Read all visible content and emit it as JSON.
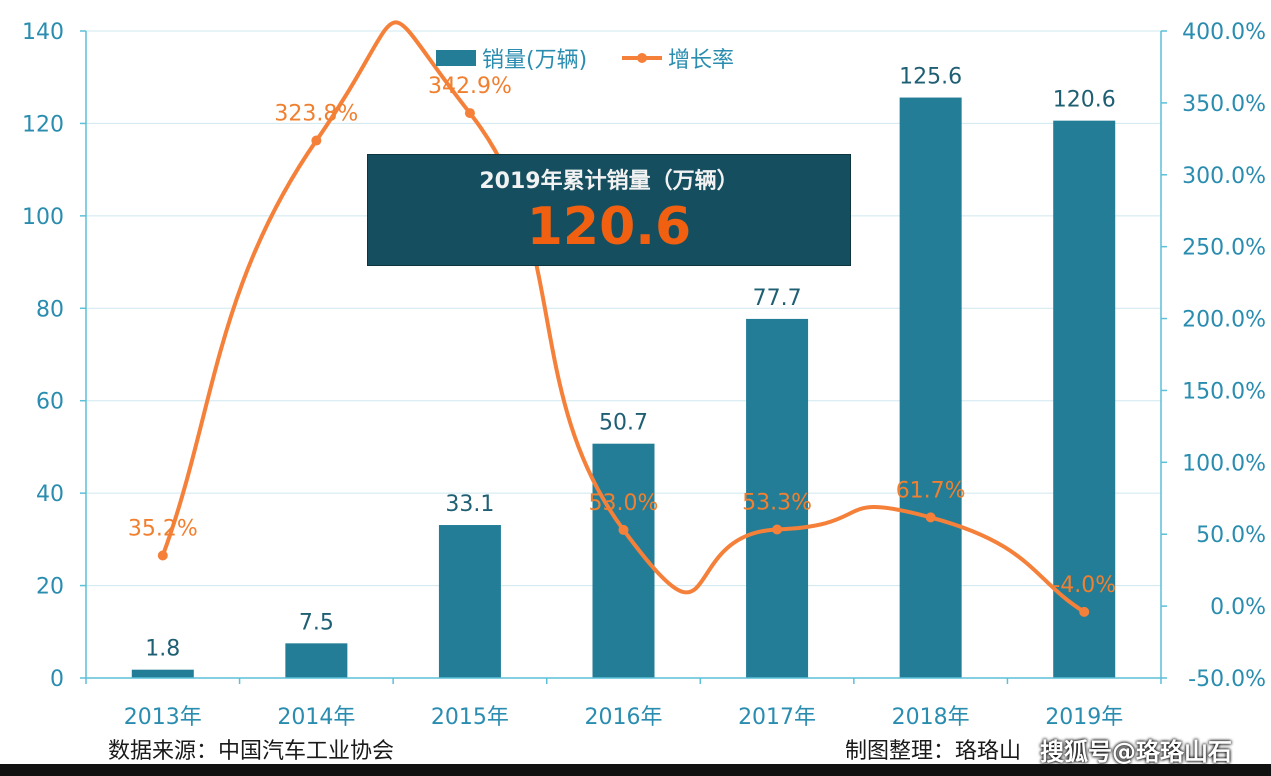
{
  "chart_data": {
    "type": "bar+line",
    "categories": [
      "2013年",
      "2014年",
      "2015年",
      "2016年",
      "2017年",
      "2018年",
      "2019年"
    ],
    "series": [
      {
        "name": "销量(万辆)",
        "type": "bar",
        "axis": "left",
        "color": "#237d96",
        "values": [
          1.8,
          7.5,
          33.1,
          50.7,
          77.7,
          125.6,
          120.6
        ],
        "labels": [
          "1.8",
          "7.5",
          "33.1",
          "50.7",
          "77.7",
          "125.6",
          "120.6"
        ]
      },
      {
        "name": "增长率",
        "type": "line",
        "axis": "right",
        "color": "#f5803a",
        "values": [
          35.2,
          323.8,
          342.9,
          53.0,
          53.3,
          61.7,
          -4.0
        ],
        "labels": [
          "35.2%",
          "323.8%",
          "342.9%",
          "53.0%",
          "53.3%",
          "61.7%",
          "-4.0%"
        ]
      }
    ],
    "ylim_left": [
      0,
      140
    ],
    "yticks_left": [
      "0",
      "20",
      "40",
      "60",
      "80",
      "100",
      "120",
      "140"
    ],
    "ylim_right": [
      -50,
      400
    ],
    "yticks_right": [
      "-50.0%",
      "0.0%",
      "50.0%",
      "100.0%",
      "150.0%",
      "200.0%",
      "250.0%",
      "300.0%",
      "350.0%",
      "400.0%"
    ],
    "grid": true,
    "legend": "top-center"
  },
  "callout": {
    "title": "2019年累计销量（万辆）",
    "value": "120.6"
  },
  "footer": {
    "source": "数据来源：中国汽车工业协会",
    "credit": "制图整理：珞珞山",
    "watermark": "搜狐号@珞珞山石"
  },
  "colors": {
    "bar": "#237d96",
    "line": "#f5803a",
    "axis": "#5bc0d8",
    "tick_text": "#2a8db0",
    "callout_bg": "#154f5f",
    "callout_value": "#f06010"
  }
}
